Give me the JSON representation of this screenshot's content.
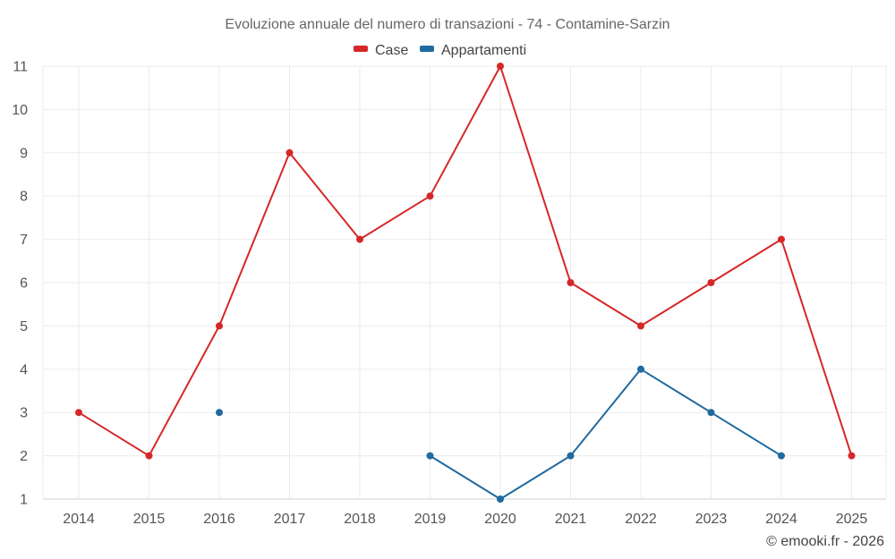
{
  "chart_data": {
    "type": "line",
    "title": "Evoluzione annuale del numero di transazioni - 74 - Contamine-Sarzin",
    "categories": [
      "2014",
      "2015",
      "2016",
      "2017",
      "2018",
      "2019",
      "2020",
      "2021",
      "2022",
      "2023",
      "2024",
      "2025"
    ],
    "ylim": [
      1,
      11
    ],
    "yticks": [
      1,
      2,
      3,
      4,
      5,
      6,
      7,
      8,
      9,
      10,
      11
    ],
    "grid": true,
    "legend_position": "top-center",
    "series": [
      {
        "name": "Case",
        "color": "#d62728",
        "values": [
          3,
          2,
          5,
          9,
          7,
          8,
          11,
          6,
          5,
          6,
          7,
          2
        ]
      },
      {
        "name": "Appartamenti",
        "color": "#1f6aa0",
        "values": [
          null,
          null,
          3,
          null,
          null,
          2,
          1,
          2,
          4,
          3,
          2,
          null
        ]
      }
    ],
    "xlabel": "",
    "ylabel": ""
  },
  "credit": "© emooki.fr - 2026"
}
